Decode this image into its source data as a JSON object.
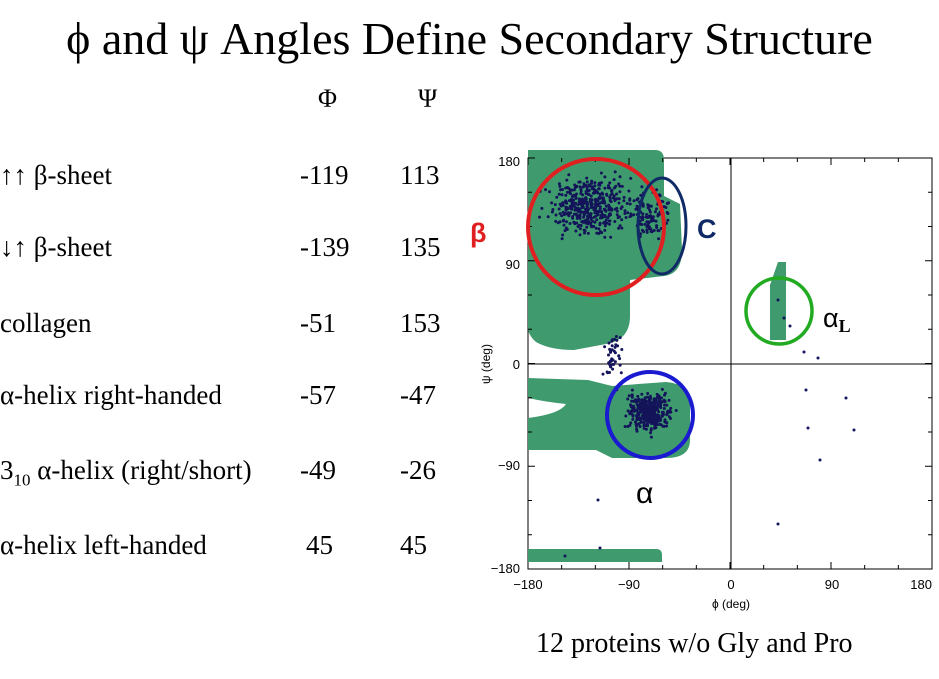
{
  "title": "ϕ and ψ Angles Define Secondary Structure",
  "table": {
    "phi_header": "Φ",
    "psi_header": "Ψ",
    "rows": [
      {
        "name": "↑↑ β-sheet",
        "phi": "-119",
        "psi": "113"
      },
      {
        "name": "↓↑  β-sheet",
        "phi": "-139",
        "psi": "135"
      },
      {
        "name": "collagen",
        "phi": "-51",
        "psi": "153"
      },
      {
        "name": "α-helix right-handed",
        "phi": "-57",
        "psi": "-47"
      },
      {
        "name_prefix": "3",
        "name_sub": "10",
        "name_suffix": " α-helix (right/short)",
        "phi": "-49",
        "psi": "-26"
      },
      {
        "name": "α-helix left-handed",
        "phi": "45",
        "psi": "45"
      }
    ]
  },
  "plot": {
    "xlabel": "ϕ (deg)",
    "ylabel": "ψ (deg)",
    "x_ticks": [
      "−180",
      "−90",
      "0",
      "90",
      "180"
    ],
    "y_ticks": [
      "180",
      "90",
      "0",
      "−90",
      "−180"
    ],
    "region_labels": {
      "beta": "β",
      "collagen": "C",
      "alpha": "α",
      "alpha_left": "α",
      "alpha_left_sub": "L"
    },
    "colors": {
      "region_fill": "#3f9a6e",
      "points": "#14145a",
      "beta_circle": "#e02020",
      "collagen_circle": "#0f2a66",
      "alpha_circle": "#1a1ad0",
      "alpha_left_circle": "#22aa22"
    }
  },
  "caption": "12 proteins w/o Gly and Pro"
}
